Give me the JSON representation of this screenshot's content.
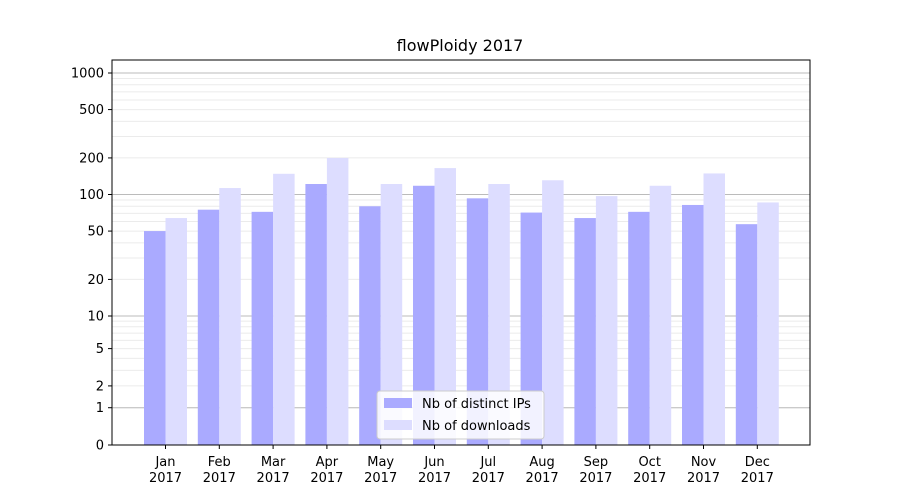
{
  "chart_data": {
    "type": "bar",
    "title": "flowPloidy 2017",
    "xlabel": "",
    "ylabel": "",
    "y_scale": "symlog",
    "ylim": [
      0,
      1300
    ],
    "categories": [
      [
        "Jan",
        "2017"
      ],
      [
        "Feb",
        "2017"
      ],
      [
        "Mar",
        "2017"
      ],
      [
        "Apr",
        "2017"
      ],
      [
        "May",
        "2017"
      ],
      [
        "Jun",
        "2017"
      ],
      [
        "Jul",
        "2017"
      ],
      [
        "Aug",
        "2017"
      ],
      [
        "Sep",
        "2017"
      ],
      [
        "Oct",
        "2017"
      ],
      [
        "Nov",
        "2017"
      ],
      [
        "Dec",
        "2017"
      ]
    ],
    "y_ticks": [
      0,
      1,
      2,
      5,
      10,
      20,
      50,
      100,
      200,
      500,
      1000
    ],
    "series": [
      {
        "name": "Nb of distinct IPs",
        "color": "#aaaaff",
        "values": [
          50,
          75,
          72,
          122,
          80,
          118,
          93,
          71,
          64,
          72,
          82,
          57
        ]
      },
      {
        "name": "Nb of downloads",
        "color": "#ddddff",
        "values": [
          64,
          113,
          148,
          200,
          122,
          165,
          122,
          131,
          97,
          118,
          149,
          86
        ]
      }
    ],
    "grid": true,
    "legend_position": "lower-center"
  }
}
